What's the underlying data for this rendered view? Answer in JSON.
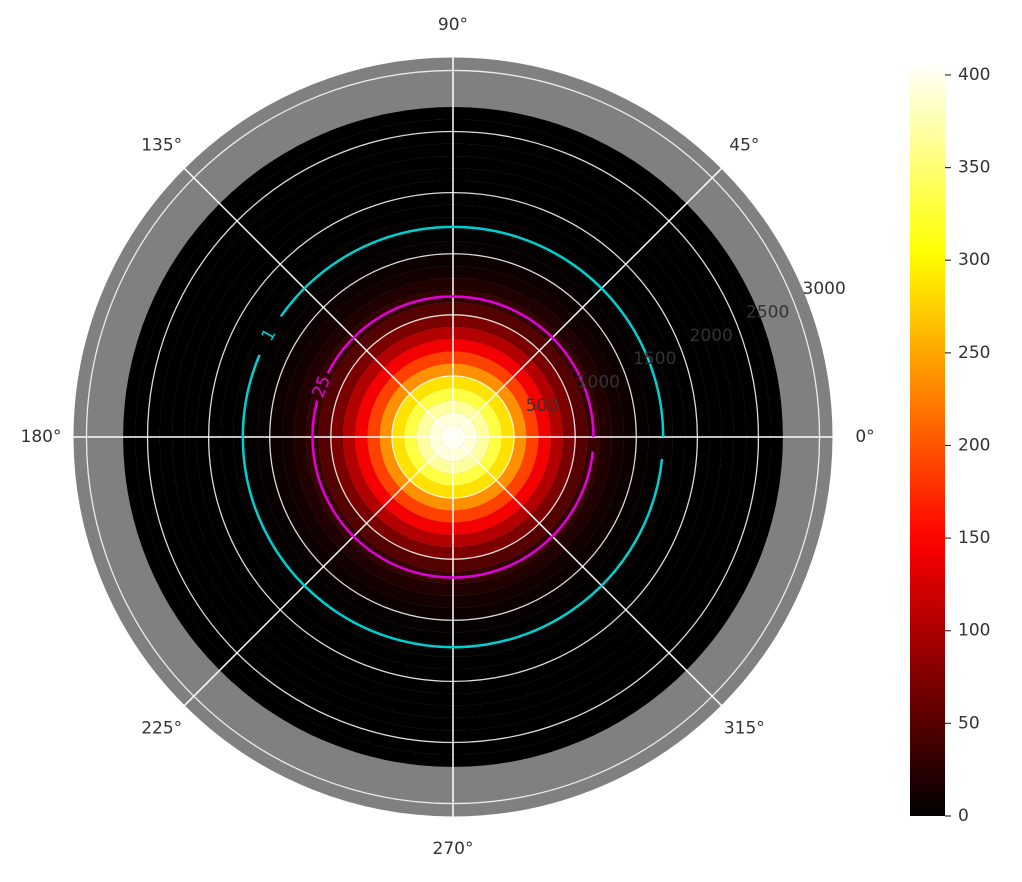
{
  "chart_data": {
    "type": "polar-heatmap",
    "cmap": "hot",
    "background": "#808080",
    "r_edges": [
      0,
      100,
      200,
      300,
      400,
      500,
      600,
      700,
      800,
      900,
      1000,
      1100,
      1200,
      1300,
      1400,
      1500,
      1600,
      1700,
      1800,
      1900,
      2000,
      2100,
      2200,
      2300,
      2400,
      2500,
      2600,
      2700
    ],
    "values": [
      400,
      392,
      368,
      331,
      286,
      237,
      188,
      143,
      104,
      73,
      49,
      31,
      19,
      11,
      7,
      4,
      2,
      1,
      0,
      0,
      0,
      0,
      0,
      0,
      0,
      0,
      0
    ],
    "rlim": [
      0,
      3110
    ],
    "rticks": [
      500,
      1000,
      1500,
      2000,
      2500,
      3000
    ],
    "thetaticks": [
      {
        "value": 0,
        "label": "0°"
      },
      {
        "value": 45,
        "label": "45°"
      },
      {
        "value": 90,
        "label": "90°"
      },
      {
        "value": 135,
        "label": "135°"
      },
      {
        "value": 180,
        "label": "180°"
      },
      {
        "value": 225,
        "label": "225°"
      },
      {
        "value": 270,
        "label": "270°"
      },
      {
        "value": 315,
        "label": "315°"
      }
    ],
    "contours": [
      {
        "level": 1,
        "color": "#00d0d0",
        "r": 1720
      },
      {
        "level": 25,
        "color": "#e000e0",
        "r": 1150
      }
    ],
    "colorbar": {
      "ylim": [
        0,
        407
      ],
      "yticks": [
        0,
        50,
        100,
        150,
        200,
        250,
        300,
        350,
        400
      ]
    },
    "grid": true
  }
}
